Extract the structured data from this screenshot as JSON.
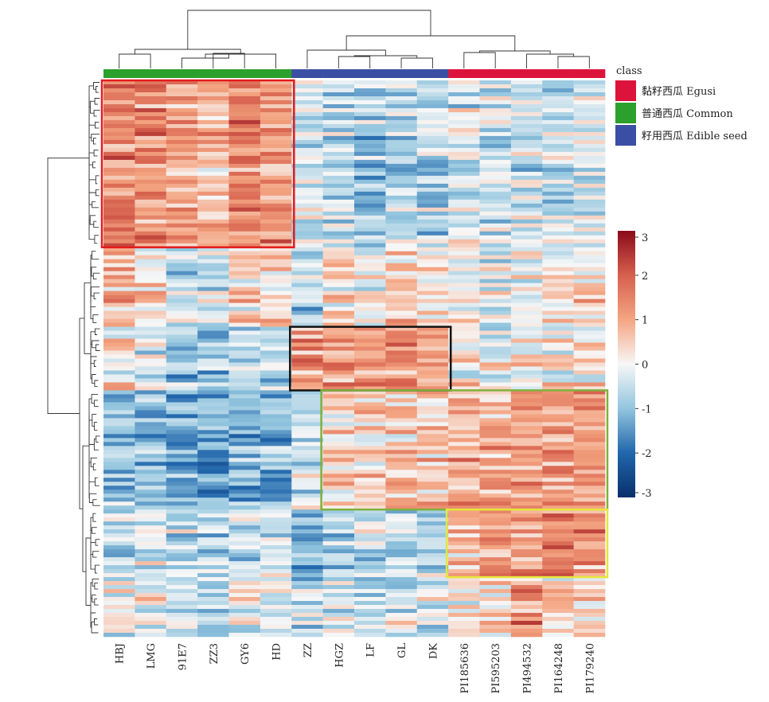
{
  "chart_data": {
    "type": "heatmap",
    "title": "",
    "columns": [
      "HBJ",
      "LMG",
      "91E7",
      "ZZ3",
      "GY6",
      "HD",
      "ZZ",
      "HGZ",
      "LF",
      "GL",
      "DK",
      "PI185636",
      "PI595203",
      "PI494532",
      "PI164248",
      "PI179240"
    ],
    "column_classes": [
      "Common",
      "Common",
      "Common",
      "Common",
      "Common",
      "Common",
      "Edible seed",
      "Edible seed",
      "Edible seed",
      "Edible seed",
      "Edible seed",
      "Egusi",
      "Egusi",
      "Egusi",
      "Egusi",
      "Egusi"
    ],
    "class_legend": {
      "title": "class",
      "placement": "top-right",
      "items": [
        {
          "key": "Egusi",
          "label": "黏籽西瓜 Egusi",
          "color": "#DC143C"
        },
        {
          "key": "Common",
          "label": "普通西瓜 Common",
          "color": "#2CA02C"
        },
        {
          "key": "Edible seed",
          "label": "籽用西瓜 Edible seed",
          "color": "#3A4FA3"
        }
      ]
    },
    "color_scale": {
      "min": -3,
      "max": 3,
      "ticks": [
        "3",
        "2",
        "1",
        "0",
        "-1",
        "-2",
        "-3"
      ],
      "stops": [
        "#08306B",
        "#2166AC",
        "#92C5DE",
        "#F7F7F7",
        "#F4A582",
        "#D6604D",
        "#8B0A1A"
      ]
    },
    "row_count": 140,
    "row_blocks": [
      {
        "rows": [
          0,
          42
        ],
        "means": [
          1.4,
          1.3,
          0.9,
          0.8,
          1.3,
          1.2,
          -0.4,
          -0.6,
          -0.9,
          -0.7,
          -0.7,
          -0.3,
          -0.5,
          -0.4,
          -0.6,
          -0.4
        ]
      },
      {
        "rows": [
          42,
          62
        ],
        "means": [
          0.7,
          0.3,
          -0.5,
          -0.4,
          0.4,
          0.3,
          -0.6,
          0.3,
          0.0,
          0.5,
          0.2,
          0.2,
          -0.3,
          0.0,
          0.1,
          0.4
        ]
      },
      {
        "rows": [
          62,
          78
        ],
        "means": [
          0.3,
          -0.2,
          -0.8,
          -1.0,
          -0.6,
          -0.8,
          1.3,
          1.2,
          1.3,
          1.4,
          1.2,
          0.3,
          0.0,
          0.1,
          0.2,
          0.3
        ]
      },
      {
        "rows": [
          78,
          108
        ],
        "means": [
          -0.9,
          -1.0,
          -1.2,
          -1.3,
          -1.3,
          -1.2,
          -0.3,
          0.5,
          0.6,
          0.6,
          0.5,
          1.0,
          0.9,
          1.1,
          1.2,
          1.1
        ]
      },
      {
        "rows": [
          108,
          125
        ],
        "means": [
          -0.5,
          -0.4,
          -0.5,
          -0.6,
          -0.5,
          -0.4,
          -0.8,
          -0.5,
          -0.4,
          -0.6,
          -0.5,
          0.7,
          1.3,
          1.2,
          1.6,
          1.3
        ]
      },
      {
        "rows": [
          125,
          140
        ],
        "means": [
          -0.1,
          0.0,
          -0.3,
          -0.3,
          -0.2,
          -0.3,
          -0.6,
          -0.1,
          -0.4,
          -0.3,
          -0.3,
          0.1,
          0.4,
          1.3,
          0.5,
          0.5
        ]
      }
    ],
    "highlight_boxes": [
      {
        "color": "#E41A1C",
        "columns": [
          "HBJ",
          "HD"
        ],
        "rows": [
          0,
          42
        ]
      },
      {
        "color": "#111111",
        "columns": [
          "ZZ",
          "DK"
        ],
        "rows": [
          62,
          78
        ]
      },
      {
        "color": "#7FB13D",
        "columns": [
          "HGZ",
          "PI179240"
        ],
        "rows": [
          78,
          108
        ]
      },
      {
        "color": "#E6E63A",
        "columns": [
          "PI185636",
          "PI179240"
        ],
        "rows": [
          108,
          125
        ]
      }
    ],
    "column_dendrogram": true,
    "row_dendrogram": true
  }
}
